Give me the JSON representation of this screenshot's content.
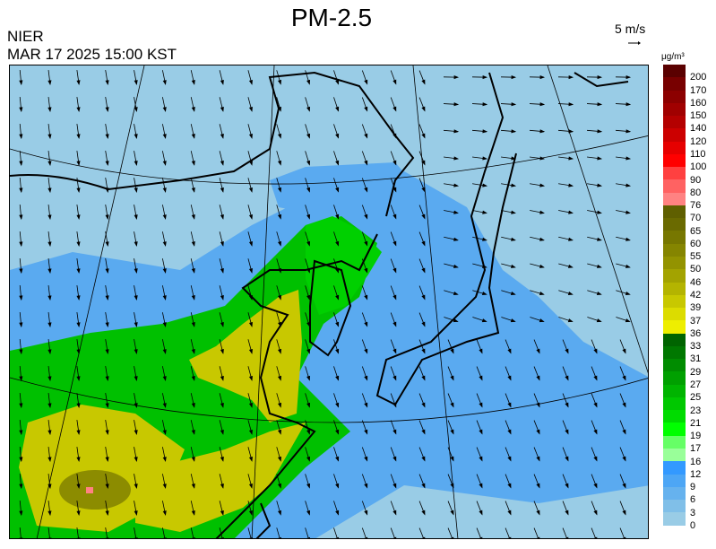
{
  "header": {
    "title": "PM-2.5",
    "organization": "NIER",
    "timestamp": "MAR 17 2025 15:00 KST",
    "wind_scale_label": "5 m/s",
    "unit": "μg/m³"
  },
  "legend": {
    "labels": [
      "200",
      "170",
      "160",
      "150",
      "140",
      "120",
      "110",
      "100",
      "90",
      "80",
      "76",
      "70",
      "65",
      "60",
      "55",
      "50",
      "46",
      "42",
      "39",
      "37",
      "36",
      "33",
      "31",
      "29",
      "27",
      "25",
      "23",
      "21",
      "19",
      "17",
      "16",
      "12",
      "9",
      "6",
      "3",
      "0"
    ],
    "colors": [
      "#5a0000",
      "#780000",
      "#8c0000",
      "#a00000",
      "#b40000",
      "#cc0000",
      "#e60000",
      "#ff0000",
      "#ff4040",
      "#ff6262",
      "#ff8282",
      "#5f5f00",
      "#6a6a00",
      "#777700",
      "#858500",
      "#939300",
      "#a3a300",
      "#b4b400",
      "#c8c800",
      "#dcdc00",
      "#eeee00",
      "#006400",
      "#007800",
      "#008c00",
      "#00a000",
      "#00b400",
      "#00c800",
      "#00dc00",
      "#00ff00",
      "#66ff66",
      "#99ff99",
      "#3399ff",
      "#4da6f5",
      "#66b2ee",
      "#80bfe8",
      "#99cce6"
    ]
  },
  "map": {
    "background_color": "#99cce6",
    "region": "East Asia (China, Korea, Japan)",
    "variable": "PM-2.5 concentration with wind vectors"
  }
}
